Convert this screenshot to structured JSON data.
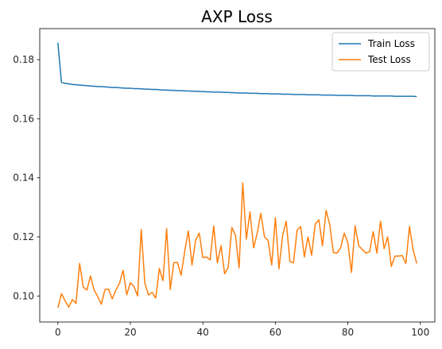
{
  "chart_data": {
    "type": "line",
    "title": "AXP Loss",
    "xlabel": "",
    "ylabel": "",
    "xlim": [
      -5,
      104
    ],
    "ylim": [
      0.0912,
      0.1905
    ],
    "xticks": [
      0,
      20,
      40,
      60,
      80,
      100
    ],
    "yticks": [
      0.1,
      0.12,
      0.14,
      0.16,
      0.18
    ],
    "grid": false,
    "legend": "top-right",
    "series": [
      {
        "name": "Train Loss",
        "color": "#1f77b4",
        "x": [
          0,
          1,
          2,
          3,
          4,
          5,
          6,
          7,
          8,
          9,
          10,
          11,
          12,
          13,
          14,
          15,
          16,
          17,
          18,
          19,
          20,
          21,
          22,
          23,
          24,
          25,
          26,
          27,
          28,
          29,
          30,
          31,
          32,
          33,
          34,
          35,
          36,
          37,
          38,
          39,
          40,
          41,
          42,
          43,
          44,
          45,
          46,
          47,
          48,
          49,
          50,
          51,
          52,
          53,
          54,
          55,
          56,
          57,
          58,
          59,
          60,
          61,
          62,
          63,
          64,
          65,
          66,
          67,
          68,
          69,
          70,
          71,
          72,
          73,
          74,
          75,
          76,
          77,
          78,
          79,
          80,
          81,
          82,
          83,
          84,
          85,
          86,
          87,
          88,
          89,
          90,
          91,
          92,
          93,
          94,
          95,
          96,
          97,
          98,
          99
        ],
        "values": [
          0.1857,
          0.1723,
          0.172,
          0.1718,
          0.1716,
          0.1715,
          0.1714,
          0.1713,
          0.1712,
          0.1711,
          0.171,
          0.1709,
          0.1709,
          0.1708,
          0.1707,
          0.1706,
          0.1706,
          0.1705,
          0.1704,
          0.1703,
          0.1703,
          0.1702,
          0.1702,
          0.1701,
          0.17,
          0.17,
          0.1699,
          0.1699,
          0.1698,
          0.1697,
          0.1697,
          0.1696,
          0.1696,
          0.1695,
          0.1695,
          0.1694,
          0.1694,
          0.1693,
          0.1693,
          0.1692,
          0.1692,
          0.1691,
          0.1691,
          0.169,
          0.169,
          0.169,
          0.1689,
          0.1689,
          0.1688,
          0.1688,
          0.1687,
          0.1687,
          0.1687,
          0.1686,
          0.1686,
          0.1686,
          0.1685,
          0.1685,
          0.1685,
          0.1684,
          0.1684,
          0.1684,
          0.1683,
          0.1683,
          0.1683,
          0.1682,
          0.1682,
          0.1682,
          0.1682,
          0.1681,
          0.1681,
          0.1681,
          0.1681,
          0.168,
          0.168,
          0.168,
          0.168,
          0.1679,
          0.1679,
          0.1679,
          0.1679,
          0.1679,
          0.1678,
          0.1678,
          0.1678,
          0.1678,
          0.1678,
          0.1677,
          0.1677,
          0.1677,
          0.1677,
          0.1677,
          0.1677,
          0.1676,
          0.1676,
          0.1676,
          0.1676,
          0.1676,
          0.1676,
          0.1675
        ]
      },
      {
        "name": "Test Loss",
        "color": "#ff7f0e",
        "x": [
          0,
          1,
          2,
          3,
          4,
          5,
          6,
          7,
          8,
          9,
          10,
          11,
          12,
          13,
          14,
          15,
          16,
          17,
          18,
          19,
          20,
          21,
          22,
          23,
          24,
          25,
          26,
          27,
          28,
          29,
          30,
          31,
          32,
          33,
          34,
          35,
          36,
          37,
          38,
          39,
          40,
          41,
          42,
          43,
          44,
          45,
          46,
          47,
          48,
          49,
          50,
          51,
          52,
          53,
          54,
          55,
          56,
          57,
          58,
          59,
          60,
          61,
          62,
          63,
          64,
          65,
          66,
          67,
          68,
          69,
          70,
          71,
          72,
          73,
          74,
          75,
          76,
          77,
          78,
          79,
          80,
          81,
          82,
          83,
          84,
          85,
          86,
          87,
          88,
          89,
          90,
          91,
          92,
          93,
          94,
          95,
          96,
          97,
          98,
          99
        ],
        "values": [
          0.096,
          0.1008,
          0.0983,
          0.0962,
          0.0988,
          0.0975,
          0.111,
          0.103,
          0.102,
          0.1068,
          0.102,
          0.0998,
          0.0972,
          0.1022,
          0.1023,
          0.099,
          0.102,
          0.1043,
          0.1087,
          0.1004,
          0.1045,
          0.1032,
          0.1,
          0.1225,
          0.1043,
          0.1003,
          0.1012,
          0.0993,
          0.1093,
          0.1052,
          0.1228,
          0.1022,
          0.1113,
          0.1113,
          0.107,
          0.1152,
          0.122,
          0.1105,
          0.1188,
          0.1213,
          0.113,
          0.1132,
          0.1122,
          0.1237,
          0.1112,
          0.117,
          0.1075,
          0.1097,
          0.1232,
          0.1205,
          0.1095,
          0.1383,
          0.1192,
          0.1285,
          0.1163,
          0.1213,
          0.128,
          0.12,
          0.1188,
          0.1105,
          0.1265,
          0.1092,
          0.1205,
          0.1253,
          0.1117,
          0.1112,
          0.1223,
          0.1235,
          0.1132,
          0.12,
          0.1138,
          0.1243,
          0.1258,
          0.117,
          0.129,
          0.1242,
          0.1147,
          0.1145,
          0.1163,
          0.1213,
          0.118,
          0.108,
          0.1238,
          0.117,
          0.1157,
          0.1145,
          0.115,
          0.1218,
          0.1145,
          0.1253,
          0.116,
          0.12,
          0.11,
          0.1135,
          0.1135,
          0.1137,
          0.111,
          0.1235,
          0.1157,
          0.111
        ]
      }
    ]
  }
}
